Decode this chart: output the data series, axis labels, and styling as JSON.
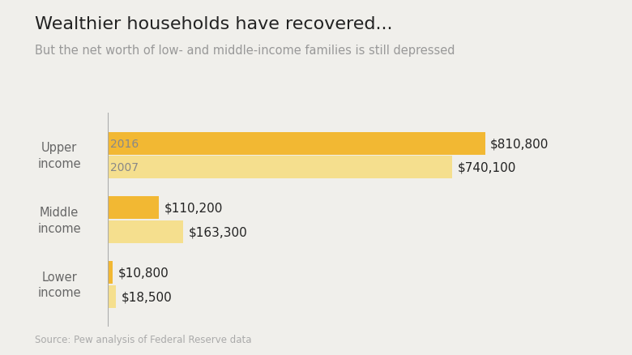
{
  "title": "Wealthier households have recovered...",
  "subtitle": "But the net worth of low- and middle-income families is still depressed",
  "source": "Source: Pew analysis of Federal Reserve data",
  "categories": [
    "Upper\nincome",
    "Middle\nincome",
    "Lower\nincome"
  ],
  "year_2016": [
    810800,
    110200,
    10800
  ],
  "year_2007": [
    740100,
    163300,
    18500
  ],
  "labels_2016": [
    "$810,800",
    "$110,200",
    "$10,800"
  ],
  "labels_2007": [
    "$740,100",
    "$163,300",
    "$18,500"
  ],
  "year_label_threshold": 200000,
  "color_2016": "#F2B833",
  "color_2007": "#F5DF8E",
  "background_color": "#F0EFEB",
  "bar_height": 0.35,
  "xlim_max": 950000,
  "title_fontsize": 16,
  "subtitle_fontsize": 10.5,
  "source_fontsize": 8.5,
  "label_fontsize": 11,
  "year_label_fontsize": 10,
  "category_fontsize": 10.5,
  "divider_color": "#AAAAAA",
  "label_color": "#222222",
  "category_color": "#666666",
  "subtitle_color": "#999999",
  "source_color": "#AAAAAA",
  "title_color": "#222222",
  "year_label_color": "#888888"
}
